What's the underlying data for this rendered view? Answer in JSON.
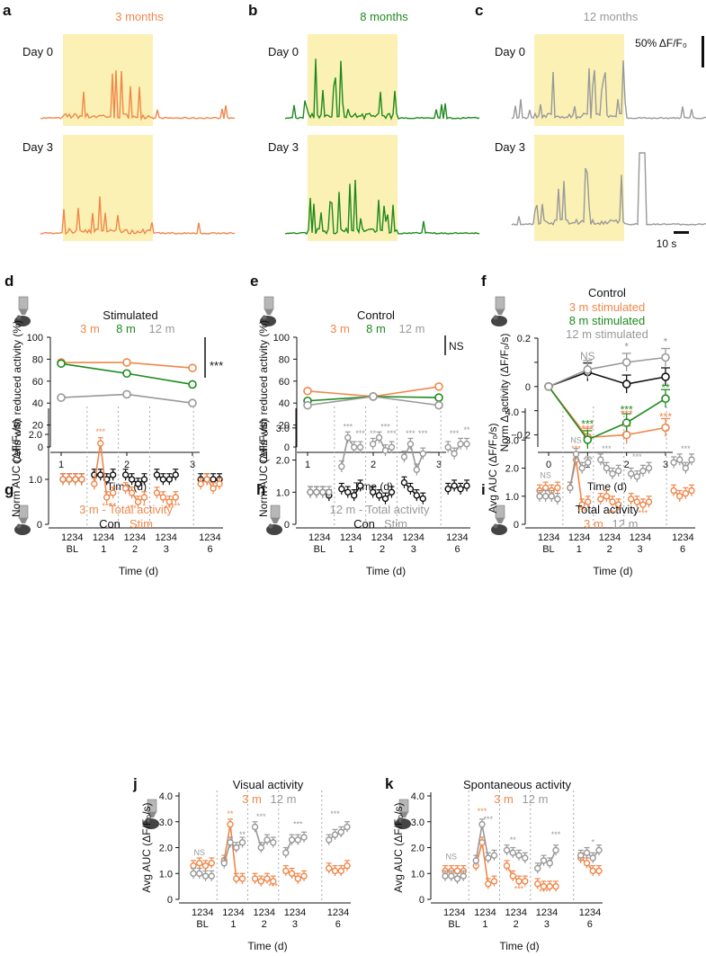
{
  "colors": {
    "m3": "#f0874a",
    "m8": "#1e8a1e",
    "m12": "#999999",
    "con": "#111111",
    "stimband": "#fbf1b4",
    "text": "#111111"
  },
  "panels": {
    "a": {
      "letter": "a",
      "title": "3 months",
      "color": "#f0874a",
      "days": [
        "Day 0",
        "Day 3"
      ]
    },
    "b": {
      "letter": "b",
      "title": "8 months",
      "color": "#1e8a1e",
      "days": [
        "Day 0",
        "Day 3"
      ]
    },
    "c": {
      "letter": "c",
      "title": "12 months",
      "color": "#999999",
      "days": [
        "Day 0",
        "Day 3"
      ]
    },
    "scale": {
      "y": "50% ΔF/F₀",
      "x": "10 s"
    }
  },
  "chart_data": [
    {
      "panel": "d",
      "type": "line",
      "title": "Stimulated",
      "legend": [
        "3 m",
        "8 m",
        "12 m"
      ],
      "xlabel": "Time (d)",
      "ylabel": "Cells with reduced activity (%)",
      "x": [
        1,
        2,
        3
      ],
      "ylim": [
        0,
        100
      ],
      "yticks": [
        0,
        20,
        40,
        60,
        80,
        100
      ],
      "series": [
        {
          "name": "3 m",
          "values": [
            77,
            77,
            72
          ]
        },
        {
          "name": "8 m",
          "values": [
            76,
            67,
            57
          ]
        },
        {
          "name": "12 m",
          "values": [
            45,
            48,
            40
          ]
        }
      ],
      "annotation": "***"
    },
    {
      "panel": "e",
      "type": "line",
      "title": "Control",
      "legend": [
        "3 m",
        "8 m",
        "12 m"
      ],
      "xlabel": "Time (d)",
      "ylabel": "Cells with reduced activity (%)",
      "x": [
        1,
        2,
        3
      ],
      "ylim": [
        0,
        100
      ],
      "yticks": [
        0,
        20,
        40,
        60,
        80,
        100
      ],
      "series": [
        {
          "name": "3 m",
          "values": [
            51,
            46,
            55
          ]
        },
        {
          "name": "8 m",
          "values": [
            42,
            46,
            45
          ]
        },
        {
          "name": "12 m",
          "values": [
            38,
            46,
            38
          ]
        }
      ],
      "annotation": "NS"
    },
    {
      "panel": "f",
      "type": "line",
      "title": "Control",
      "legend": [
        "3 m stimulated",
        "8 m stimulated",
        "12 m stimulated"
      ],
      "xlabel": "Time (d)",
      "ylabel": "Norm Δ activity (ΔF/F₀/s)",
      "x": [
        0,
        1,
        2,
        3
      ],
      "ylim": [
        -0.25,
        0.2
      ],
      "yticks": [
        -0.2,
        -0.1,
        0,
        0.1,
        0.2
      ],
      "yticklabels": [
        "−0.2",
        "",
        "0",
        "",
        "0.2"
      ],
      "series": [
        {
          "name": "Control",
          "values": [
            0,
            0.06,
            0.01,
            0.04
          ]
        },
        {
          "name": "3 m stimulated",
          "values": [
            0,
            -0.21,
            -0.2,
            -0.17
          ]
        },
        {
          "name": "8 m stimulated",
          "values": [
            0,
            -0.22,
            -0.15,
            -0.05
          ]
        },
        {
          "name": "12 m stimulated",
          "values": [
            0,
            0.07,
            0.1,
            0.12
          ]
        }
      ],
      "annotations": [
        "NS",
        "*",
        "*",
        "***",
        "***",
        "***",
        "***",
        "***",
        "**",
        "***"
      ]
    },
    {
      "panel": "g",
      "type": "line",
      "title": "3 m - Total activity",
      "legend": [
        "Con",
        "Stim"
      ],
      "xlabel": "Time (d)",
      "ylabel": "Norm AUC (ΔF/F₀/s)",
      "ylim": [
        0,
        2.5
      ],
      "yticks": [
        0,
        1,
        2
      ],
      "yticklabels": [
        "0",
        "1.0",
        "2.0"
      ],
      "groups": [
        "BL",
        "1",
        "2",
        "3",
        "6"
      ],
      "sessions": [
        "1",
        "2",
        "3",
        "4"
      ],
      "series": [
        {
          "name": "Con",
          "values": [
            1.0,
            1.0,
            1.0,
            1.0,
            1.1,
            1.1,
            1.0,
            1.1,
            1.1,
            1.0,
            0.9,
            1.0,
            1.1,
            1.0,
            1.0,
            1.1,
            1.0,
            1.0,
            1.0,
            1.0
          ]
        },
        {
          "name": "Stim",
          "values": [
            1.0,
            1.0,
            1.0,
            1.0,
            0.9,
            1.8,
            0.6,
            0.7,
            0.8,
            0.7,
            0.5,
            0.6,
            0.7,
            0.6,
            0.5,
            0.6,
            0.9,
            1.0,
            0.8,
            0.9
          ]
        }
      ],
      "annotations": [
        "***",
        "***",
        "**",
        "***",
        "*",
        "***",
        "***"
      ]
    },
    {
      "panel": "h",
      "type": "line",
      "title": "12 m - Total activity",
      "legend": [
        "Con",
        "Stim"
      ],
      "xlabel": "Time (d)",
      "ylabel": "Norm AUC (ΔF/F₀/s)",
      "ylim": [
        0,
        3.5
      ],
      "yticks": [
        0,
        1,
        2,
        3
      ],
      "yticklabels": [
        "0",
        "1.0",
        "2.0",
        "3.0"
      ],
      "groups": [
        "BL",
        "1",
        "2",
        "3",
        "6"
      ],
      "sessions": [
        "1",
        "2",
        "3",
        "4"
      ],
      "series": [
        {
          "name": "Con",
          "values": [
            1.0,
            1.0,
            1.0,
            0.9,
            1.1,
            1.0,
            0.9,
            1.2,
            1.0,
            0.9,
            0.8,
            1.0,
            1.3,
            1.1,
            0.9,
            0.8,
            1.1,
            1.2,
            1.1,
            1.2
          ]
        },
        {
          "name": "Stim",
          "values": [
            1.0,
            1.0,
            1.0,
            1.0,
            1.8,
            2.7,
            2.4,
            2.4,
            2.5,
            2.7,
            2.3,
            2.4,
            2.1,
            2.5,
            1.7,
            2.2,
            2.4,
            2.2,
            2.5,
            2.5
          ]
        }
      ],
      "annotations": [
        "***",
        "***",
        "**",
        "***",
        "***",
        "***",
        "***",
        "***",
        "**"
      ]
    },
    {
      "panel": "i",
      "type": "line",
      "title": "Total activity",
      "legend": [
        "3 m",
        "12 m"
      ],
      "xlabel": "Time (d)",
      "ylabel": "Avg AUC (ΔF/F₀/s)",
      "ylim": [
        0,
        4
      ],
      "yticks": [
        0,
        1,
        2,
        3,
        4
      ],
      "yticklabels": [
        "0",
        "1.0",
        "2.0",
        "3.0",
        "4.0"
      ],
      "groups": [
        "BL",
        "1",
        "2",
        "3",
        "6"
      ],
      "sessions": [
        "1",
        "2",
        "3",
        "4"
      ],
      "series": [
        {
          "name": "3 m",
          "values": [
            1.2,
            1.3,
            1.2,
            1.3,
            1.3,
            2.3,
            0.7,
            0.8,
            0.9,
            1.0,
            0.8,
            0.7,
            0.9,
            0.8,
            0.7,
            0.8,
            1.2,
            1.0,
            1.1,
            1.2
          ]
        },
        {
          "name": "12 m",
          "values": [
            1.0,
            1.0,
            1.0,
            0.9,
            1.3,
            2.5,
            2.0,
            2.2,
            2.3,
            2.0,
            1.8,
            1.9,
            1.8,
            1.7,
            1.9,
            2.0,
            2.2,
            2.3,
            2.0,
            2.3
          ]
        }
      ],
      "annotations": [
        "NS",
        "NS",
        "***",
        "***",
        "***",
        "***",
        "***",
        "***",
        "***",
        "***"
      ]
    },
    {
      "panel": "j",
      "type": "line",
      "title": "Visual activity",
      "legend": [
        "3 m",
        "12 m"
      ],
      "xlabel": "Time (d)",
      "ylabel": "Avg AUC (ΔF/F₀/s)",
      "ylim": [
        0,
        4
      ],
      "yticks": [
        0,
        1,
        2,
        3,
        4
      ],
      "yticklabels": [
        "0",
        "1.0",
        "2.0",
        "3.0",
        "4.0"
      ],
      "groups": [
        "BL",
        "1",
        "2",
        "3",
        "6"
      ],
      "sessions": [
        "1",
        "2",
        "3",
        "4"
      ],
      "series": [
        {
          "name": "3 m",
          "values": [
            1.3,
            1.4,
            1.3,
            1.4,
            1.5,
            2.9,
            0.8,
            0.8,
            0.8,
            0.7,
            0.8,
            0.7,
            1.1,
            1.0,
            0.8,
            0.9,
            1.2,
            1.1,
            1.1,
            1.3
          ]
        },
        {
          "name": "12 m",
          "values": [
            1.0,
            1.0,
            0.9,
            0.9,
            1.4,
            2.2,
            2.0,
            2.2,
            2.8,
            2.0,
            2.3,
            2.2,
            1.8,
            2.3,
            2.3,
            2.4,
            2.3,
            2.5,
            2.6,
            2.8
          ]
        }
      ],
      "annotations": [
        "NS",
        "**",
        "**",
        "***",
        "***",
        "***",
        "***"
      ]
    },
    {
      "panel": "k",
      "type": "line",
      "title": "Spontaneous activity",
      "legend": [
        "3 m",
        "12 m"
      ],
      "xlabel": "Time (d)",
      "ylabel": "Avg AUC (ΔF/F₀/s)",
      "ylim": [
        0,
        4
      ],
      "yticks": [
        0,
        1,
        2,
        3,
        4
      ],
      "yticklabels": [
        "0",
        "1.0",
        "2.0",
        "3.0",
        "4.0"
      ],
      "groups": [
        "BL",
        "1",
        "2",
        "3",
        "6"
      ],
      "sessions": [
        "1",
        "2",
        "3",
        "4"
      ],
      "series": [
        {
          "name": "3 m",
          "values": [
            1.1,
            1.1,
            1.1,
            1.1,
            1.3,
            2.2,
            0.6,
            0.7,
            1.3,
            0.9,
            0.7,
            0.7,
            0.6,
            0.5,
            0.5,
            0.5,
            1.6,
            1.4,
            1.1,
            1.1
          ]
        },
        {
          "name": "12 m",
          "values": [
            0.9,
            0.9,
            0.8,
            0.9,
            1.5,
            2.9,
            1.6,
            1.7,
            1.9,
            1.8,
            1.7,
            1.6,
            1.2,
            1.5,
            1.4,
            1.9,
            1.7,
            1.8,
            1.6,
            1.9
          ]
        }
      ],
      "annotations": [
        "NS",
        "***",
        "***",
        "**",
        "***",
        "***",
        "***",
        "*"
      ]
    }
  ]
}
